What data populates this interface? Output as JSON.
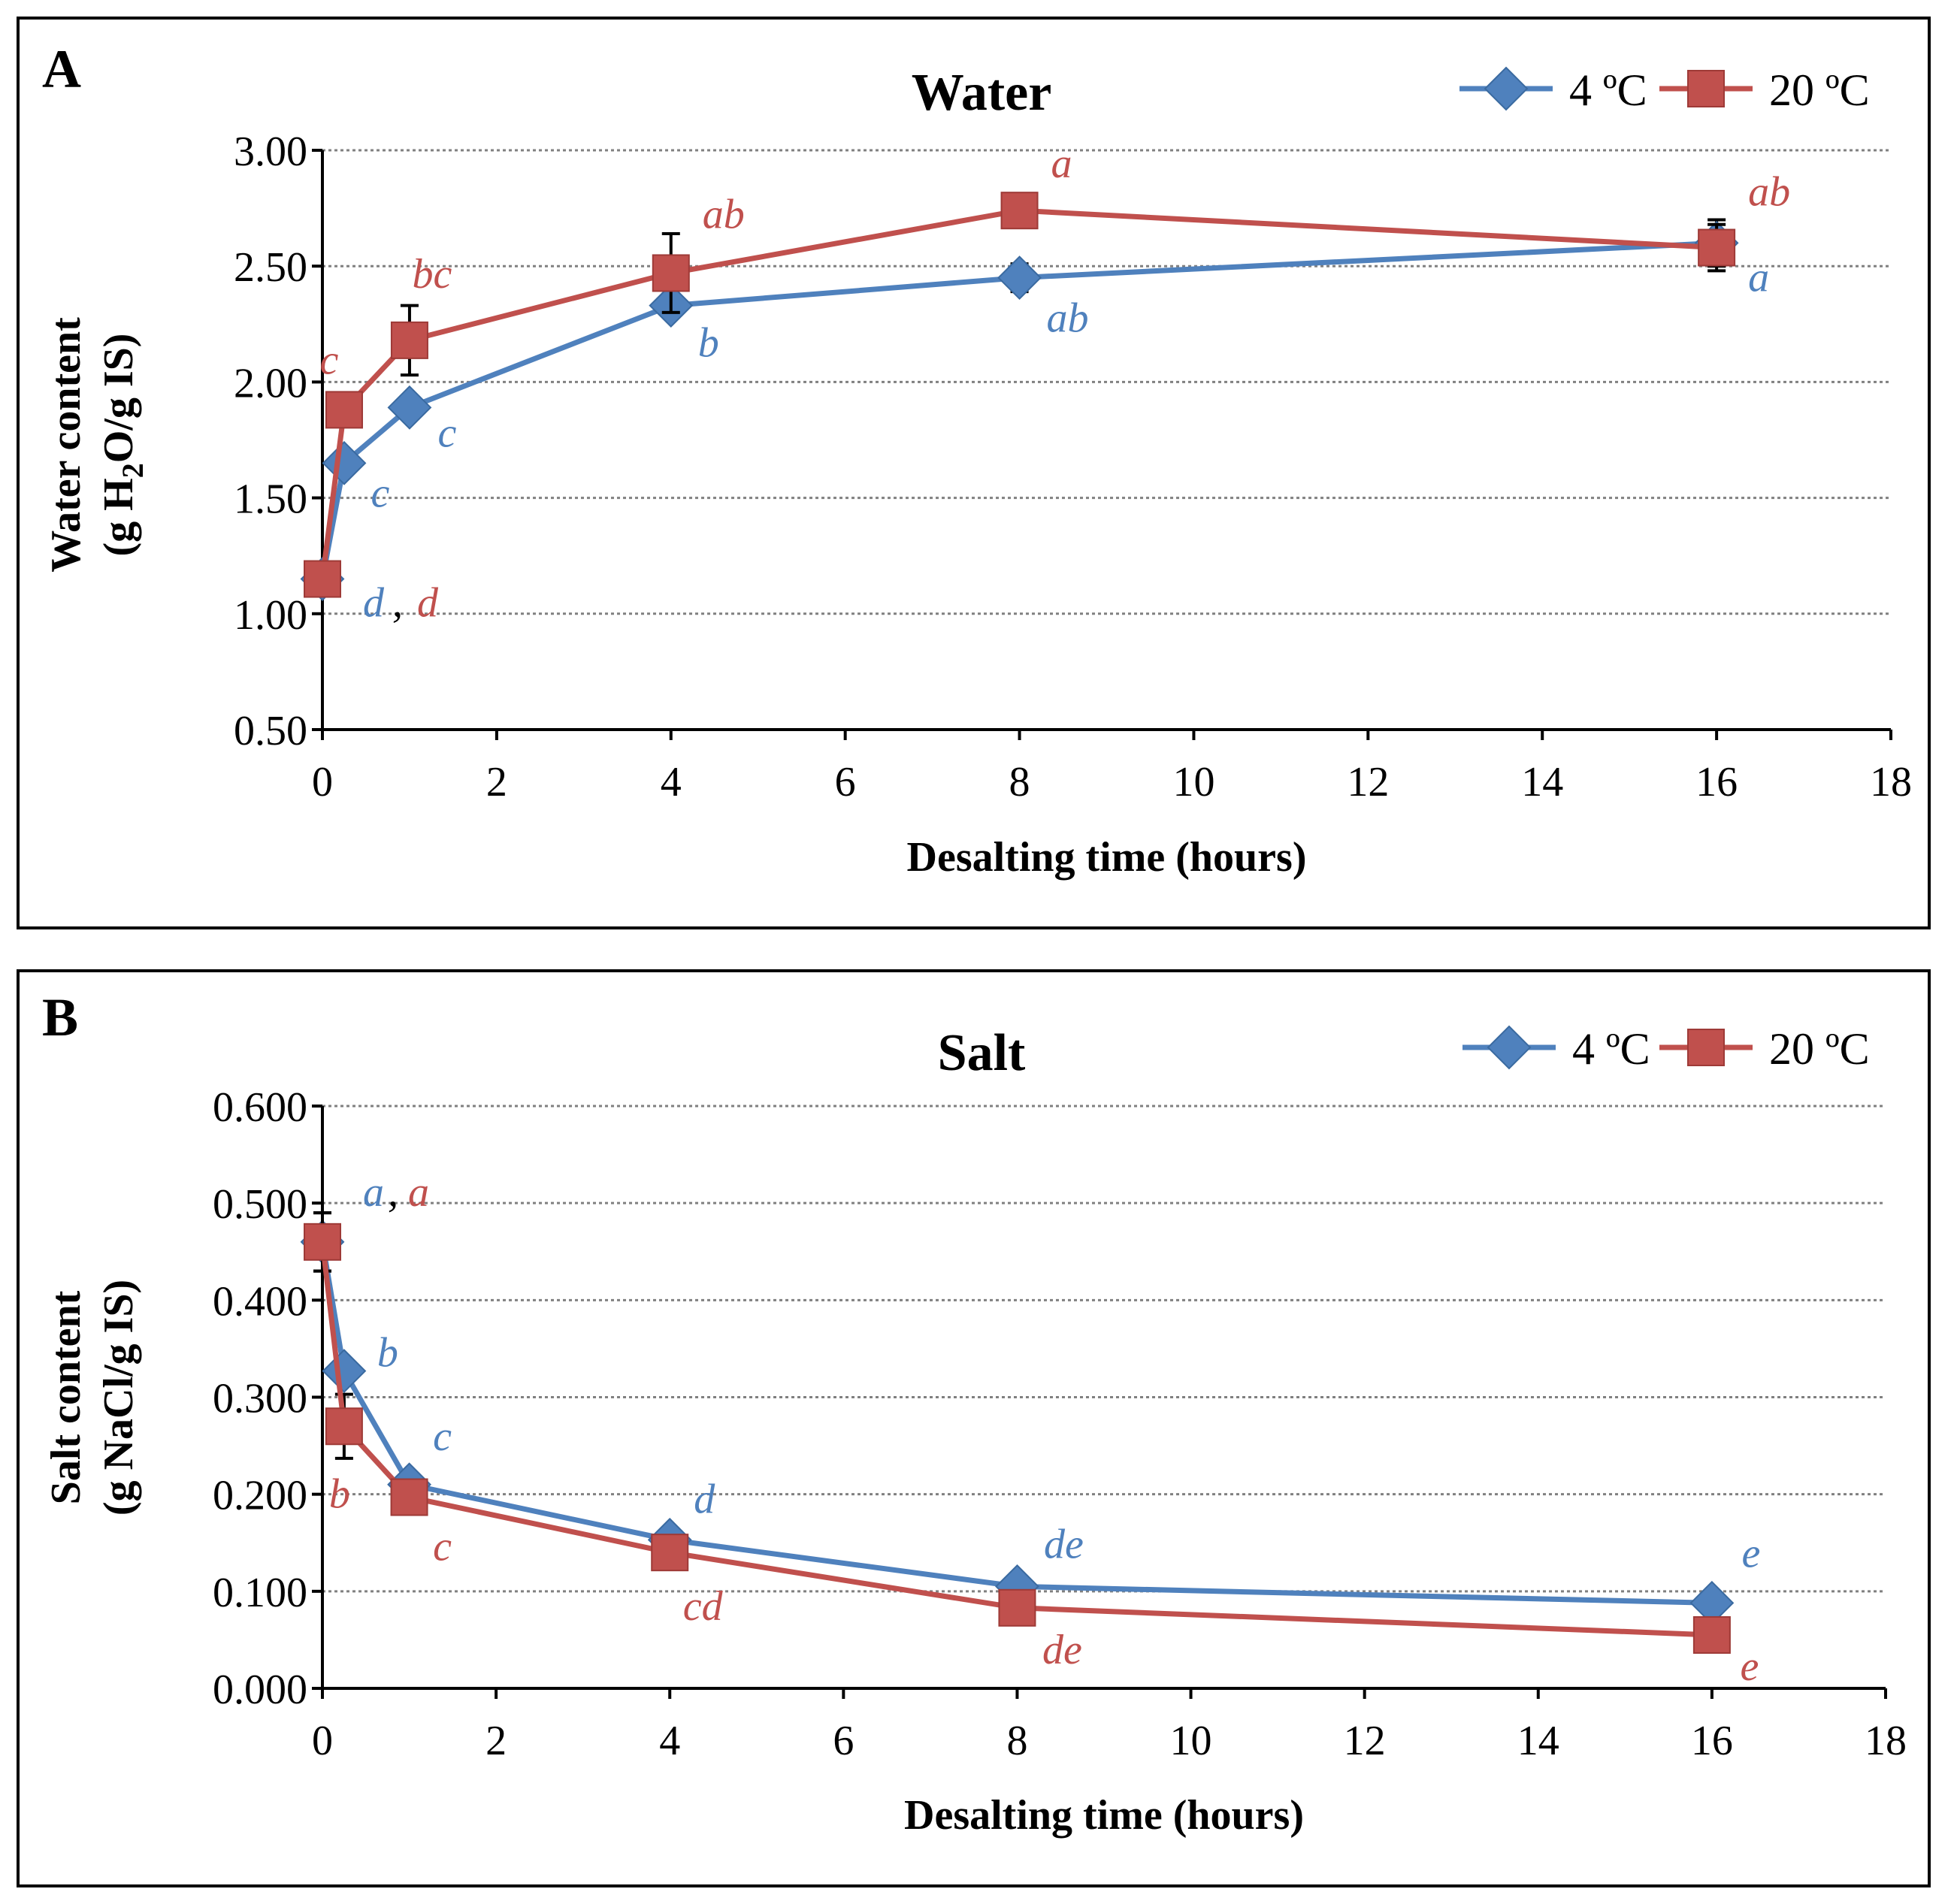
{
  "colors": {
    "series_4c": "#4f81bd",
    "series_20c": "#c0504d",
    "grid": "#808080",
    "axis": "#000000"
  },
  "chart_data": [
    {
      "panel_label": "A",
      "type": "line",
      "title": "Water",
      "xlabel": "Desalting time (hours)",
      "ylabel_line1": "Water content",
      "ylabel_line2_parts": [
        "(g H",
        "2",
        "O/g IS)"
      ],
      "xlim": [
        0,
        18
      ],
      "ylim": [
        0.5,
        3.0
      ],
      "xticks": [
        0,
        2,
        4,
        6,
        8,
        10,
        12,
        14,
        16,
        18
      ],
      "xtick_labels": [
        "0",
        "2",
        "4",
        "6",
        "8",
        "10",
        "12",
        "14",
        "16",
        "18"
      ],
      "yticks": [
        0.5,
        1.0,
        1.5,
        2.0,
        2.5,
        3.0
      ],
      "ytick_labels": [
        "0.50",
        "1.00",
        "1.50",
        "2.00",
        "2.50",
        "3.00"
      ],
      "grid": true,
      "legend_position": "top-right",
      "series": [
        {
          "name": "4 ºC",
          "color": "#4f81bd",
          "marker": "diamond",
          "x": [
            0,
            0.25,
            1,
            4,
            8,
            16
          ],
          "y": [
            1.15,
            1.65,
            1.89,
            2.33,
            2.45,
            2.6
          ],
          "err": [
            0,
            0,
            0,
            0.05,
            0.06,
            0.1
          ],
          "letters": [
            "d",
            "c",
            "c",
            "b",
            "ab",
            "a"
          ]
        },
        {
          "name": "20 ºC",
          "color": "#c0504d",
          "marker": "square",
          "x": [
            0,
            0.25,
            1,
            4,
            8,
            16
          ],
          "y": [
            1.15,
            1.88,
            2.18,
            2.47,
            2.74,
            2.58
          ],
          "err": [
            0,
            0,
            0.15,
            0.17,
            0,
            0.1
          ],
          "letters": [
            "d",
            "c",
            "bc",
            "ab",
            "a",
            "ab"
          ]
        }
      ]
    },
    {
      "panel_label": "B",
      "type": "line",
      "title": "Salt",
      "xlabel": "Desalting time (hours)",
      "ylabel_line1": "Salt content",
      "ylabel_line2": "(g NaCl/g IS)",
      "xlim": [
        0,
        18
      ],
      "ylim": [
        0,
        0.6
      ],
      "xticks": [
        0,
        2,
        4,
        6,
        8,
        10,
        12,
        14,
        16,
        18
      ],
      "xtick_labels": [
        "0",
        "2",
        "4",
        "6",
        "8",
        "10",
        "12",
        "14",
        "16",
        "18"
      ],
      "yticks": [
        0,
        0.1,
        0.2,
        0.3,
        0.4,
        0.5,
        0.6
      ],
      "ytick_labels": [
        "0.000",
        "0.100",
        "0.200",
        "0.300",
        "0.400",
        "0.500",
        "0.600"
      ],
      "grid": true,
      "legend_position": "top-right",
      "series": [
        {
          "name": "4 ºC",
          "color": "#4f81bd",
          "marker": "diamond",
          "x": [
            0,
            0.25,
            1,
            4,
            8,
            16
          ],
          "y": [
            0.46,
            0.327,
            0.21,
            0.153,
            0.105,
            0.088
          ],
          "err": [
            0.03,
            0,
            0,
            0,
            0,
            0
          ],
          "letters": [
            "a",
            "b",
            "c",
            "d",
            "de",
            "e"
          ]
        },
        {
          "name": "20 ºC",
          "color": "#c0504d",
          "marker": "square",
          "x": [
            0,
            0.25,
            1,
            4,
            8,
            16
          ],
          "y": [
            0.46,
            0.27,
            0.197,
            0.14,
            0.083,
            0.055
          ],
          "err": [
            0.03,
            0.033,
            0,
            0,
            0,
            0
          ],
          "letters": [
            "a",
            "b",
            "c",
            "cd",
            "de",
            "e"
          ]
        }
      ]
    }
  ]
}
